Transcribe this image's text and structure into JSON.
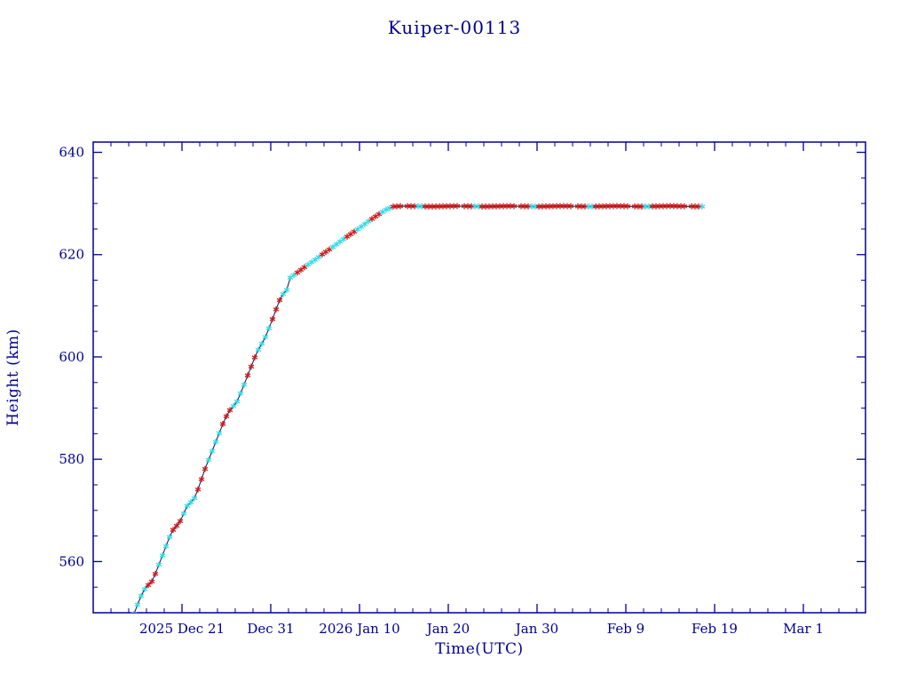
{
  "page": {
    "background": "#ffffff"
  },
  "chart_data": {
    "type": "line",
    "title": "Kuiper-00113",
    "xlabel": "Time(UTC)",
    "ylabel": "Height (km)",
    "x_unit_days_since": "2025-12-11 00:00 UTC",
    "xlim": [
      0,
      87
    ],
    "ylim": [
      550,
      642
    ],
    "grid": false,
    "legend_position": "none",
    "y_ticks": [
      560,
      580,
      600,
      620,
      640
    ],
    "y_minor_step_km": 5,
    "x_ticks": [
      {
        "d": 10,
        "label": "2025 Dec 21"
      },
      {
        "d": 20,
        "label": "Dec 31"
      },
      {
        "d": 30,
        "label": "2026 Jan 10"
      },
      {
        "d": 40,
        "label": "Jan 20"
      },
      {
        "d": 50,
        "label": "Jan 30"
      },
      {
        "d": 60,
        "label": "Feb 9"
      },
      {
        "d": 70,
        "label": "Feb 19"
      },
      {
        "d": 80,
        "label": "Mar 1"
      }
    ],
    "x_minor_step_days": 2,
    "colors": {
      "frame": "#000090",
      "text": "#000090",
      "line": "#12125e",
      "marker_red": "#cc1a1a",
      "marker_cyan": "#35dbe6"
    },
    "marker_interval_days": 0.4,
    "series": [
      {
        "name": "height-profile",
        "points": [
          [
            4.6,
            549.8
          ],
          [
            5.0,
            551.6
          ],
          [
            5.4,
            553.3
          ],
          [
            5.8,
            554.6
          ],
          [
            6.2,
            555.4
          ],
          [
            6.6,
            556.1
          ],
          [
            7.0,
            557.6
          ],
          [
            7.4,
            559.4
          ],
          [
            7.8,
            561.2
          ],
          [
            8.2,
            563.0
          ],
          [
            8.6,
            564.8
          ],
          [
            9.0,
            566.2
          ],
          [
            9.4,
            567.0
          ],
          [
            9.8,
            567.9
          ],
          [
            10.2,
            569.4
          ],
          [
            10.6,
            570.9
          ],
          [
            11.0,
            571.6
          ],
          [
            11.4,
            572.4
          ],
          [
            11.8,
            574.1
          ],
          [
            12.2,
            576.1
          ],
          [
            12.6,
            578.1
          ],
          [
            13.0,
            579.9
          ],
          [
            13.4,
            581.6
          ],
          [
            13.8,
            583.4
          ],
          [
            14.2,
            585.1
          ],
          [
            14.6,
            586.9
          ],
          [
            15.0,
            588.4
          ],
          [
            15.4,
            589.6
          ],
          [
            15.8,
            590.4
          ],
          [
            16.2,
            591.3
          ],
          [
            16.6,
            592.9
          ],
          [
            17.0,
            594.6
          ],
          [
            17.4,
            596.4
          ],
          [
            17.8,
            598.1
          ],
          [
            18.2,
            599.9
          ],
          [
            18.6,
            601.4
          ],
          [
            19.0,
            602.6
          ],
          [
            19.4,
            603.9
          ],
          [
            19.8,
            605.6
          ],
          [
            20.2,
            607.4
          ],
          [
            20.6,
            609.3
          ],
          [
            21.0,
            611.1
          ],
          [
            21.4,
            612.3
          ],
          [
            21.8,
            613.1
          ],
          [
            22.2,
            615.5
          ],
          [
            23.0,
            616.5
          ],
          [
            24.0,
            617.8
          ],
          [
            25.0,
            619.0
          ],
          [
            26.0,
            620.3
          ],
          [
            27.0,
            621.5
          ],
          [
            28.0,
            622.8
          ],
          [
            29.0,
            624.0
          ],
          [
            30.0,
            625.2
          ],
          [
            31.0,
            626.5
          ],
          [
            32.0,
            627.7
          ],
          [
            33.0,
            628.8
          ],
          [
            33.8,
            629.4
          ],
          [
            35.0,
            629.5
          ],
          [
            38.0,
            629.4
          ],
          [
            41.0,
            629.5
          ],
          [
            44.0,
            629.4
          ],
          [
            47.0,
            629.5
          ],
          [
            50.0,
            629.4
          ],
          [
            53.0,
            629.5
          ],
          [
            56.0,
            629.4
          ],
          [
            59.0,
            629.5
          ],
          [
            62.0,
            629.4
          ],
          [
            65.0,
            629.5
          ],
          [
            68.5,
            629.4
          ]
        ]
      }
    ]
  }
}
